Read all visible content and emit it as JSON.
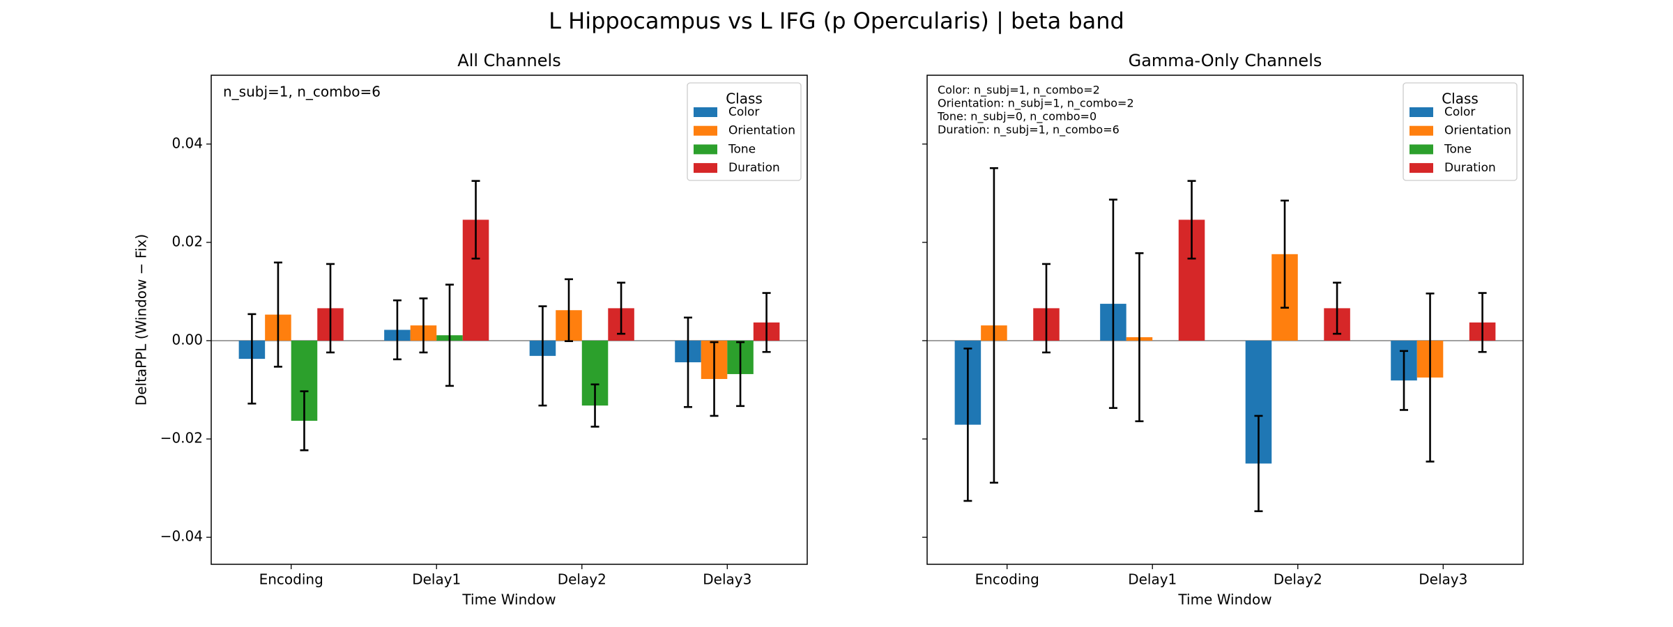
{
  "title": "L Hippocampus vs L IFG (p Opercularis)  |  beta band",
  "chart_data": [
    {
      "type": "bar",
      "title": "All Channels",
      "xlabel": "Time Window",
      "ylabel": "DeltaPPL (Window − Fix)",
      "annotation": [
        "n_subj=1, n_combo=6"
      ],
      "categories": [
        "Encoding",
        "Delay1",
        "Delay2",
        "Delay3"
      ],
      "legend_title": "Class",
      "legend": "upper right",
      "show_ytick_labels": true,
      "ylim": [
        -0.0455,
        0.054
      ],
      "yticks": [
        {
          "value": -0.04,
          "label": "−0.04"
        },
        {
          "value": -0.02,
          "label": "−0.02"
        },
        {
          "value": 0,
          "label": "0.00"
        },
        {
          "value": 0.02,
          "label": "0.02"
        },
        {
          "value": 0.04,
          "label": "0.04"
        }
      ],
      "series": [
        {
          "name": "Color",
          "color": "#1f77b4",
          "values": [
            -0.0037,
            0.0022,
            -0.0031,
            -0.0044
          ],
          "errors": [
            0.0091,
            0.006,
            0.0101,
            0.0091
          ]
        },
        {
          "name": "Orientation",
          "color": "#ff7f0e",
          "values": [
            0.0053,
            0.0031,
            0.0062,
            -0.0078
          ],
          "errors": [
            0.0106,
            0.0055,
            0.0063,
            0.0075
          ]
        },
        {
          "name": "Tone",
          "color": "#2ca02c",
          "values": [
            -0.0163,
            0.0011,
            -0.0132,
            -0.0068
          ],
          "errors": [
            0.006,
            0.0103,
            0.0043,
            0.0065
          ]
        },
        {
          "name": "Duration",
          "color": "#d62728",
          "values": [
            0.0066,
            0.0246,
            0.0066,
            0.0037
          ],
          "errors": [
            0.009,
            0.0079,
            0.0052,
            0.006
          ]
        }
      ]
    },
    {
      "type": "bar",
      "title": "Gamma-Only Channels",
      "xlabel": "Time Window",
      "annotation": [
        "Color: n_subj=1, n_combo=2",
        "Orientation: n_subj=1, n_combo=2",
        "Tone: n_subj=0, n_combo=0",
        "Duration: n_subj=1, n_combo=6"
      ],
      "categories": [
        "Encoding",
        "Delay1",
        "Delay2",
        "Delay3"
      ],
      "legend_title": "Class",
      "legend": "upper right",
      "show_ytick_labels": false,
      "ylim": [
        -0.0455,
        0.054
      ],
      "yticks": [
        -0.04,
        -0.02,
        0,
        0.02,
        0.04
      ],
      "series": [
        {
          "name": "Color",
          "color": "#1f77b4",
          "values": [
            -0.0171,
            0.0075,
            -0.025,
            -0.0081
          ],
          "errors": [
            0.0155,
            0.0212,
            0.0097,
            0.006
          ]
        },
        {
          "name": "Orientation",
          "color": "#ff7f0e",
          "values": [
            0.0031,
            0.0007,
            0.0176,
            -0.0075
          ],
          "errors": [
            0.032,
            0.0171,
            0.0109,
            0.0171
          ]
        },
        {
          "name": "Tone",
          "color": "#2ca02c",
          "values": [
            null,
            null,
            null,
            null
          ],
          "errors": [
            null,
            null,
            null,
            null
          ]
        },
        {
          "name": "Duration",
          "color": "#d62728",
          "values": [
            0.0066,
            0.0246,
            0.0066,
            0.0037
          ],
          "errors": [
            0.009,
            0.0079,
            0.0052,
            0.006
          ]
        }
      ]
    }
  ]
}
